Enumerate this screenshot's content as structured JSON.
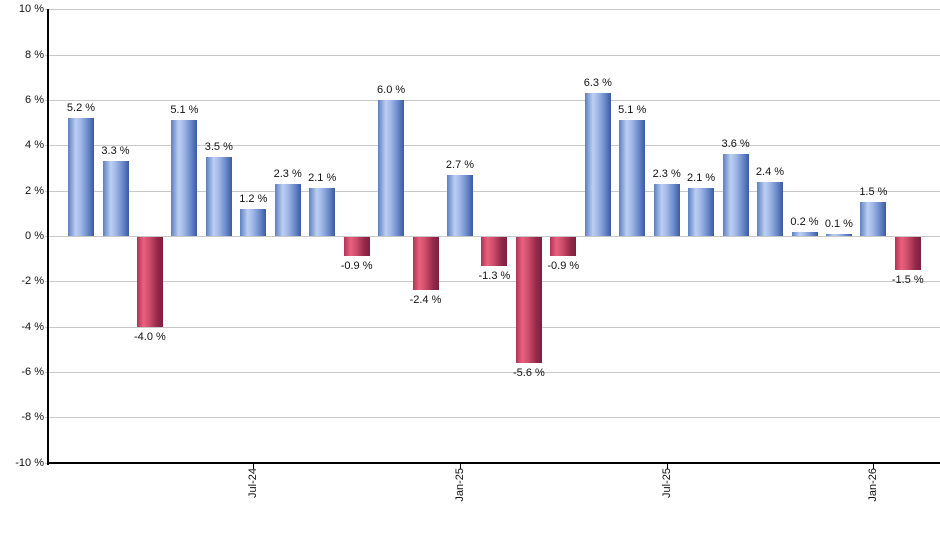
{
  "chart_data": {
    "type": "bar",
    "title": "",
    "unit": "%",
    "values": [
      5.2,
      3.3,
      -4.0,
      5.1,
      3.5,
      1.2,
      2.3,
      2.1,
      -0.9,
      6.0,
      -2.4,
      2.7,
      -1.3,
      -5.6,
      -0.9,
      6.3,
      5.1,
      2.3,
      2.1,
      3.6,
      2.4,
      0.2,
      0.1,
      1.5,
      -1.5
    ],
    "value_labels": [
      "5.2 %",
      "3.3 %",
      "-4.0 %",
      "5.1 %",
      "3.5 %",
      "1.2 %",
      "2.3 %",
      "2.1 %",
      "-0.9 %",
      "6.0 %",
      "-2.4 %",
      "2.7 %",
      "-1.3 %",
      "-5.6 %",
      "-0.9 %",
      "6.3 %",
      "5.1 %",
      "2.3 %",
      "2.1 %",
      "3.6 %",
      "2.4 %",
      "0.2 %",
      "0.1 %",
      "1.5 %",
      "-1.5 %"
    ],
    "x_tick_labels": [
      "Jul-24",
      "Jan-25",
      "Jul-25",
      "Jan-26"
    ],
    "x_tick_bar_indices": [
      5,
      11,
      17,
      23
    ],
    "y_tick_labels": [
      "10 %",
      "8 %",
      "6 %",
      "4 %",
      "2 %",
      "0 %",
      "-2 %",
      "-4 %",
      "-6 %",
      "-8 %",
      "-10 %"
    ],
    "y_tick_values": [
      10,
      8,
      6,
      4,
      2,
      0,
      -2,
      -4,
      -6,
      -8,
      -10
    ],
    "ylim": [
      -10,
      10
    ],
    "grid": true,
    "legend": "none",
    "xlabel": "",
    "ylabel": "",
    "colors": {
      "positive_bar_gradient": "linear-gradient(90deg, #5d7fc1 0%, #bccff2 30%, #9fb7e6 50%, #6c8ccc 75%, #3b5aa3 100%)",
      "negative_bar_gradient": "linear-gradient(90deg, #b03355 0%, #ea627f 25%, #c94a69 50%, #96294a 78%, #7c1f3e 100%)",
      "gridline": "#c9c9c9",
      "axis": "#000000",
      "label_text": "#111111",
      "background": "#ffffff"
    }
  }
}
